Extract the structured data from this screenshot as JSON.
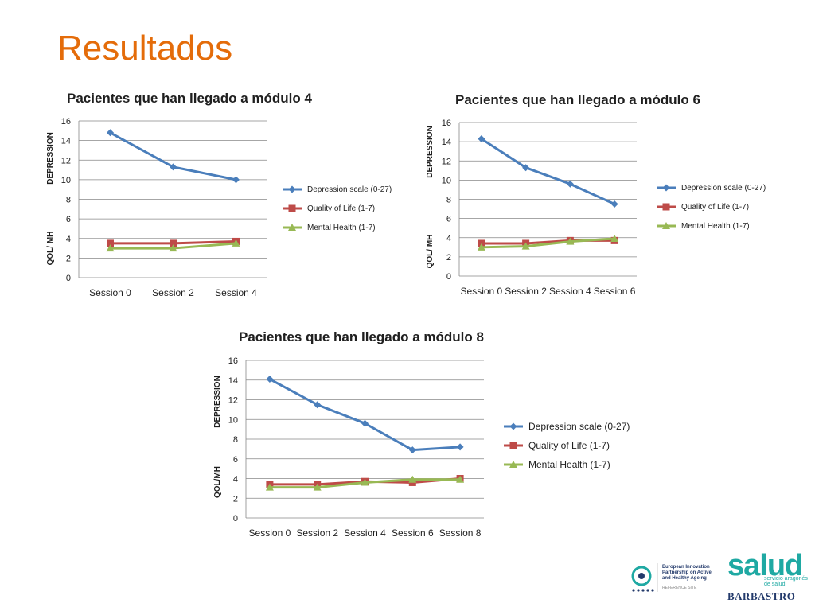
{
  "slide": {
    "title": "Resultados"
  },
  "colors": {
    "title": "#e46c0a",
    "depression": "#4a7ebb",
    "qol": "#be4b48",
    "mh": "#98b954",
    "grid": "#888888"
  },
  "legend_labels": [
    "Depression scale (0-27)",
    "Quality of Life (1-7)",
    "Mental Health (1-7)"
  ],
  "chart_data": [
    {
      "type": "line",
      "title": "Pacientes que han llegado a módulo 4",
      "categories": [
        "Session 0",
        "Session 2",
        "Session 4"
      ],
      "ylim": [
        0,
        16
      ],
      "yticks": [
        "0",
        "2",
        "4",
        "6",
        "8",
        "10",
        "12",
        "14",
        "16"
      ],
      "ylabel_top": "DEPRESSION",
      "ylabel_bottom": "QOL/ MH",
      "grid": true,
      "legend_position": "right",
      "series": [
        {
          "name": "Depression scale (0-27)",
          "values": [
            14.8,
            11.3,
            10.0
          ]
        },
        {
          "name": "Quality of Life (1-7)",
          "values": [
            3.5,
            3.5,
            3.7
          ]
        },
        {
          "name": "Mental Health (1-7)",
          "values": [
            3.0,
            3.0,
            3.5
          ]
        }
      ]
    },
    {
      "type": "line",
      "title": "Pacientes que han llegado a módulo 6",
      "categories": [
        "Session 0",
        "Session 2",
        "Session 4",
        "Session 6"
      ],
      "ylim": [
        0,
        16
      ],
      "yticks": [
        "0",
        "2",
        "4",
        "6",
        "8",
        "10",
        "12",
        "14",
        "16"
      ],
      "ylabel_top": "DEPRESSION",
      "ylabel_bottom": "QOL/ MH",
      "grid": true,
      "legend_position": "right",
      "series": [
        {
          "name": "Depression scale (0-27)",
          "values": [
            14.3,
            11.3,
            9.6,
            7.5
          ]
        },
        {
          "name": "Quality of Life (1-7)",
          "values": [
            3.4,
            3.4,
            3.7,
            3.7
          ]
        },
        {
          "name": "Mental Health (1-7)",
          "values": [
            3.0,
            3.1,
            3.6,
            3.9
          ]
        }
      ]
    },
    {
      "type": "line",
      "title": "Pacientes que han llegado a módulo 8",
      "categories": [
        "Session 0",
        "Session 2",
        "Session 4",
        "Session 6",
        "Session 8"
      ],
      "ylim": [
        0,
        16
      ],
      "yticks": [
        "0",
        "2",
        "4",
        "6",
        "8",
        "10",
        "12",
        "14",
        "16"
      ],
      "ylabel_top": "DEPRESSION",
      "ylabel_bottom": "QOL/MH",
      "grid": true,
      "legend_position": "right",
      "series": [
        {
          "name": "Depression scale (0-27)",
          "values": [
            14.1,
            11.5,
            9.6,
            6.9,
            7.2
          ]
        },
        {
          "name": "Quality of Life (1-7)",
          "values": [
            3.4,
            3.4,
            3.7,
            3.6,
            4.0
          ]
        },
        {
          "name": "Mental Health (1-7)",
          "values": [
            3.1,
            3.1,
            3.6,
            3.9,
            3.9
          ]
        }
      ]
    }
  ],
  "logos": {
    "eip_line1": "European Innovation",
    "eip_line2": "Partnership on Active",
    "eip_line3": "and Healthy Ageing",
    "eip_sub": "REFERENCE SITE",
    "salud_word": "salud",
    "salud_sub1": "servicio aragonés",
    "salud_sub2": "de salud",
    "salud_city": "BARBASTRO"
  }
}
